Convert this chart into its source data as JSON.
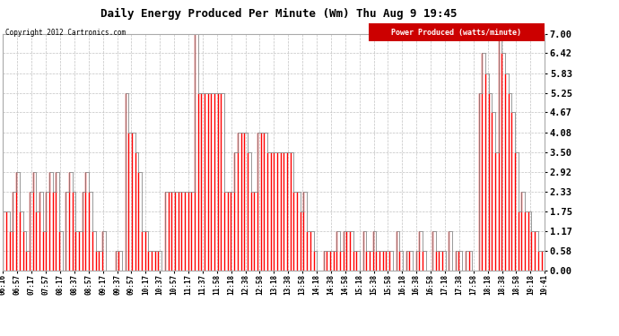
{
  "title": "Daily Energy Produced Per Minute (Wm) Thu Aug 9 19:45",
  "copyright": "Copyright 2012 Cartronics.com",
  "legend_label": "Power Produced (watts/minute)",
  "legend_bg": "#cc0000",
  "legend_fg": "#ffffff",
  "y_ticks": [
    0.0,
    0.58,
    1.17,
    1.75,
    2.33,
    2.92,
    3.5,
    4.08,
    4.67,
    5.25,
    5.83,
    6.42,
    7.0
  ],
  "y_min": 0.0,
  "y_max": 7.0,
  "bg_color": "#ffffff",
  "grid_color": "#bbbbbb",
  "line_color_main": "#888888",
  "line_color_red": "#ff0000",
  "x_labels": [
    "06:16",
    "06:57",
    "07:17",
    "07:57",
    "08:17",
    "08:37",
    "08:57",
    "09:17",
    "09:37",
    "09:57",
    "10:17",
    "10:37",
    "10:57",
    "11:17",
    "11:37",
    "11:58",
    "12:18",
    "12:38",
    "12:58",
    "13:18",
    "13:38",
    "13:58",
    "14:18",
    "14:38",
    "14:58",
    "15:18",
    "15:38",
    "15:58",
    "16:18",
    "16:38",
    "16:58",
    "17:18",
    "17:38",
    "17:58",
    "18:18",
    "18:38",
    "18:58",
    "19:18",
    "19:41"
  ],
  "values": [
    1.75,
    1.75,
    1.17,
    2.33,
    2.92,
    1.75,
    1.17,
    0.58,
    2.33,
    2.92,
    1.75,
    2.33,
    1.17,
    2.33,
    2.92,
    2.33,
    2.92,
    1.17,
    0.0,
    2.33,
    2.92,
    2.33,
    1.17,
    1.17,
    2.33,
    2.92,
    2.33,
    1.17,
    0.58,
    0.58,
    1.17,
    0.0,
    0.0,
    0.0,
    0.58,
    0.58,
    0.0,
    5.25,
    4.08,
    4.08,
    3.5,
    2.92,
    1.17,
    1.17,
    0.58,
    0.58,
    0.58,
    0.58,
    0.0,
    2.33,
    2.33,
    2.33,
    2.33,
    2.33,
    2.33,
    2.33,
    2.33,
    2.33,
    7.0,
    5.25,
    5.25,
    5.25,
    5.25,
    5.25,
    5.25,
    5.25,
    5.25,
    2.33,
    2.33,
    2.33,
    3.5,
    4.08,
    4.08,
    4.08,
    3.5,
    2.33,
    2.33,
    4.08,
    4.08,
    4.08,
    3.5,
    3.5,
    3.5,
    3.5,
    3.5,
    3.5,
    3.5,
    3.5,
    2.33,
    2.33,
    1.75,
    2.33,
    1.17,
    1.17,
    0.58,
    0.0,
    0.0,
    0.58,
    0.58,
    0.58,
    0.58,
    1.17,
    0.58,
    1.17,
    1.17,
    1.17,
    0.58,
    0.58,
    0.0,
    1.17,
    0.58,
    0.58,
    1.17,
    0.58,
    0.58,
    0.58,
    0.58,
    0.58,
    0.0,
    1.17,
    0.58,
    0.0,
    0.58,
    0.58,
    0.0,
    0.58,
    1.17,
    0.58,
    0.0,
    0.0,
    1.17,
    0.58,
    0.58,
    0.58,
    0.0,
    1.17,
    0.0,
    0.58,
    0.58,
    0.0,
    0.58,
    0.58,
    0.0,
    0.0,
    5.25,
    6.42,
    5.83,
    5.25,
    4.67,
    3.5,
    7.0,
    6.42,
    5.83,
    5.25,
    4.67,
    3.5,
    1.75,
    2.33,
    1.75,
    1.75,
    1.17,
    1.17,
    0.58,
    0.58,
    0.0
  ]
}
